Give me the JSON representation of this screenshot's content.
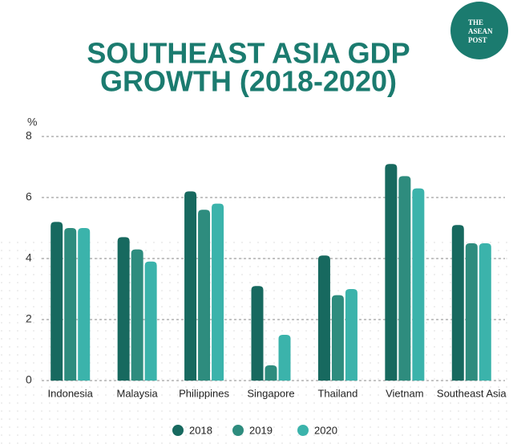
{
  "logo": [
    "THE",
    "ASEAN",
    "POST"
  ],
  "chart_data": {
    "type": "bar",
    "title": [
      "SOUTHEAST ASIA GDP",
      "GROWTH (2018-2020)"
    ],
    "y_label": "%",
    "categories": [
      "Indonesia",
      "Malaysia",
      "Philippines",
      "Singapore",
      "Thailand",
      "Vietnam",
      "Southeast Asia"
    ],
    "series": [
      {
        "name": "2018",
        "color": "#17695f",
        "values": [
          5.2,
          4.7,
          6.2,
          3.1,
          4.1,
          7.1,
          5.1
        ]
      },
      {
        "name": "2019",
        "color": "#2e8c7e",
        "values": [
          5.0,
          4.3,
          5.6,
          0.5,
          2.8,
          6.7,
          4.5
        ]
      },
      {
        "name": "2020",
        "color": "#3bb3ab",
        "values": [
          5.0,
          3.9,
          5.8,
          1.5,
          3.0,
          6.3,
          4.5
        ]
      }
    ],
    "ylim": [
      0,
      8
    ],
    "yticks": [
      0,
      2,
      4,
      6,
      8
    ],
    "grid": true
  }
}
